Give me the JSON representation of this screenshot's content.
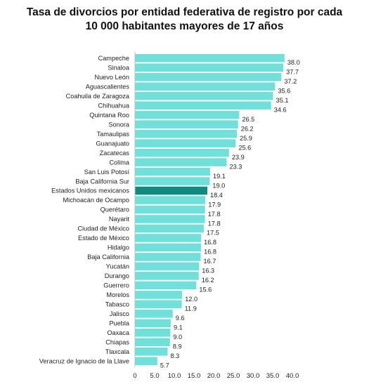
{
  "chart_data": {
    "type": "bar",
    "orientation": "horizontal",
    "title_line1": "Tasa de divorcios por entidad federativa de registro por cada",
    "title_line2": "10 000 habitantes mayores de 17 años",
    "categories": [
      "Campeche",
      "Sinaloa",
      "Nuevo León",
      "Aguascalientes",
      "Coahuila de Zaragoza",
      "Chihuahua",
      "Quintana Roo",
      "Sonora",
      "Tamaulipas",
      "Guanajuato",
      "Zacatecas",
      "Colima",
      "San Luis Potosí",
      "Baja California Sur",
      "Estados Unidos mexicanos",
      "Michoacán de Ocampo",
      "Querétaro",
      "Nayarit",
      "Ciudad de México",
      "Estado de México",
      "Hidalgo",
      "Baja California",
      "Yucatán",
      "Durango",
      "Guerrero",
      "Morelos",
      "Tabasco",
      "Jalisco",
      "Puebla",
      "Oaxaca",
      "Chiapas",
      "Tlaxcala",
      "Veracruz de Ignacio de la Llave"
    ],
    "values": [
      38.0,
      37.7,
      37.2,
      35.6,
      35.1,
      34.6,
      26.5,
      26.2,
      25.9,
      25.6,
      23.9,
      23.3,
      19.1,
      19.0,
      18.4,
      17.9,
      17.8,
      17.8,
      17.5,
      16.8,
      16.8,
      16.7,
      16.3,
      16.2,
      15.6,
      12.0,
      11.9,
      9.6,
      9.1,
      9.0,
      8.9,
      8.3,
      5.7
    ],
    "value_labels": [
      "38.0",
      "37.7",
      "37.2",
      "35.6",
      "35.1",
      "34.6",
      "26.5",
      "26.2",
      "25.9",
      "25.6",
      "23.9",
      "23.3",
      "19.1",
      "19.0",
      "18.4",
      "17.9",
      "17.8",
      "17.8",
      "17.5",
      "16.8",
      "16.8",
      "16.7",
      "16.3",
      "16.2",
      "15.6",
      "12.0",
      "11.9",
      "9.6",
      "9.1",
      "9.0",
      "8.9",
      "8.3",
      "5.7"
    ],
    "highlight_category": "Estados Unidos mexicanos",
    "xlim": [
      0,
      40
    ],
    "xticks": [
      "0",
      "5.0",
      "10.0",
      "15.0",
      "20.0",
      "25.0",
      "30.0",
      "35.0",
      "40.0"
    ],
    "grid": false,
    "bar_color": "#72e0da",
    "highlight_color": "#0e8a7f"
  }
}
